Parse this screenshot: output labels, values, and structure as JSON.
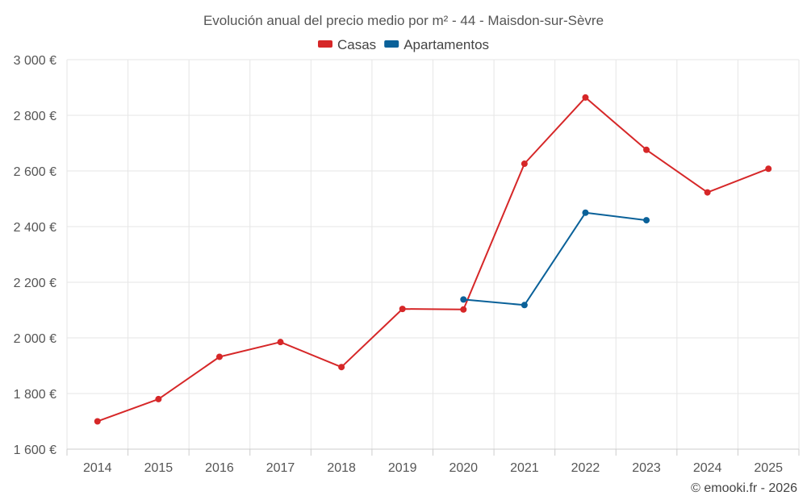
{
  "chart_data": {
    "type": "line",
    "title": "Evolución anual del precio medio por m² - 44 - Maisdon-sur-Sèvre",
    "categories": [
      "2014",
      "2015",
      "2016",
      "2017",
      "2018",
      "2019",
      "2020",
      "2021",
      "2022",
      "2023",
      "2024",
      "2025"
    ],
    "series": [
      {
        "name": "Casas",
        "color": "#d62728",
        "values": [
          1700,
          1780,
          1932,
          1985,
          1895,
          2104,
          2102,
          2626,
          2864,
          2676,
          2523,
          2608
        ]
      },
      {
        "name": "Apartamentos",
        "color": "#0a6199",
        "values": [
          null,
          null,
          null,
          null,
          null,
          null,
          2138,
          2118,
          2450,
          2423,
          null,
          null
        ]
      }
    ],
    "ylim": [
      1600,
      3000
    ],
    "yticks": [
      1600,
      1800,
      2000,
      2200,
      2400,
      2600,
      2800,
      3000
    ],
    "ytick_labels": [
      "1 600 €",
      "1 800 €",
      "2 000 €",
      "2 200 €",
      "2 400 €",
      "2 600 €",
      "2 800 €",
      "3 000 €"
    ],
    "xlabel": "",
    "ylabel": "",
    "grid": true,
    "legend_position": "top-center"
  },
  "credit": "© emooki.fr - 2026"
}
